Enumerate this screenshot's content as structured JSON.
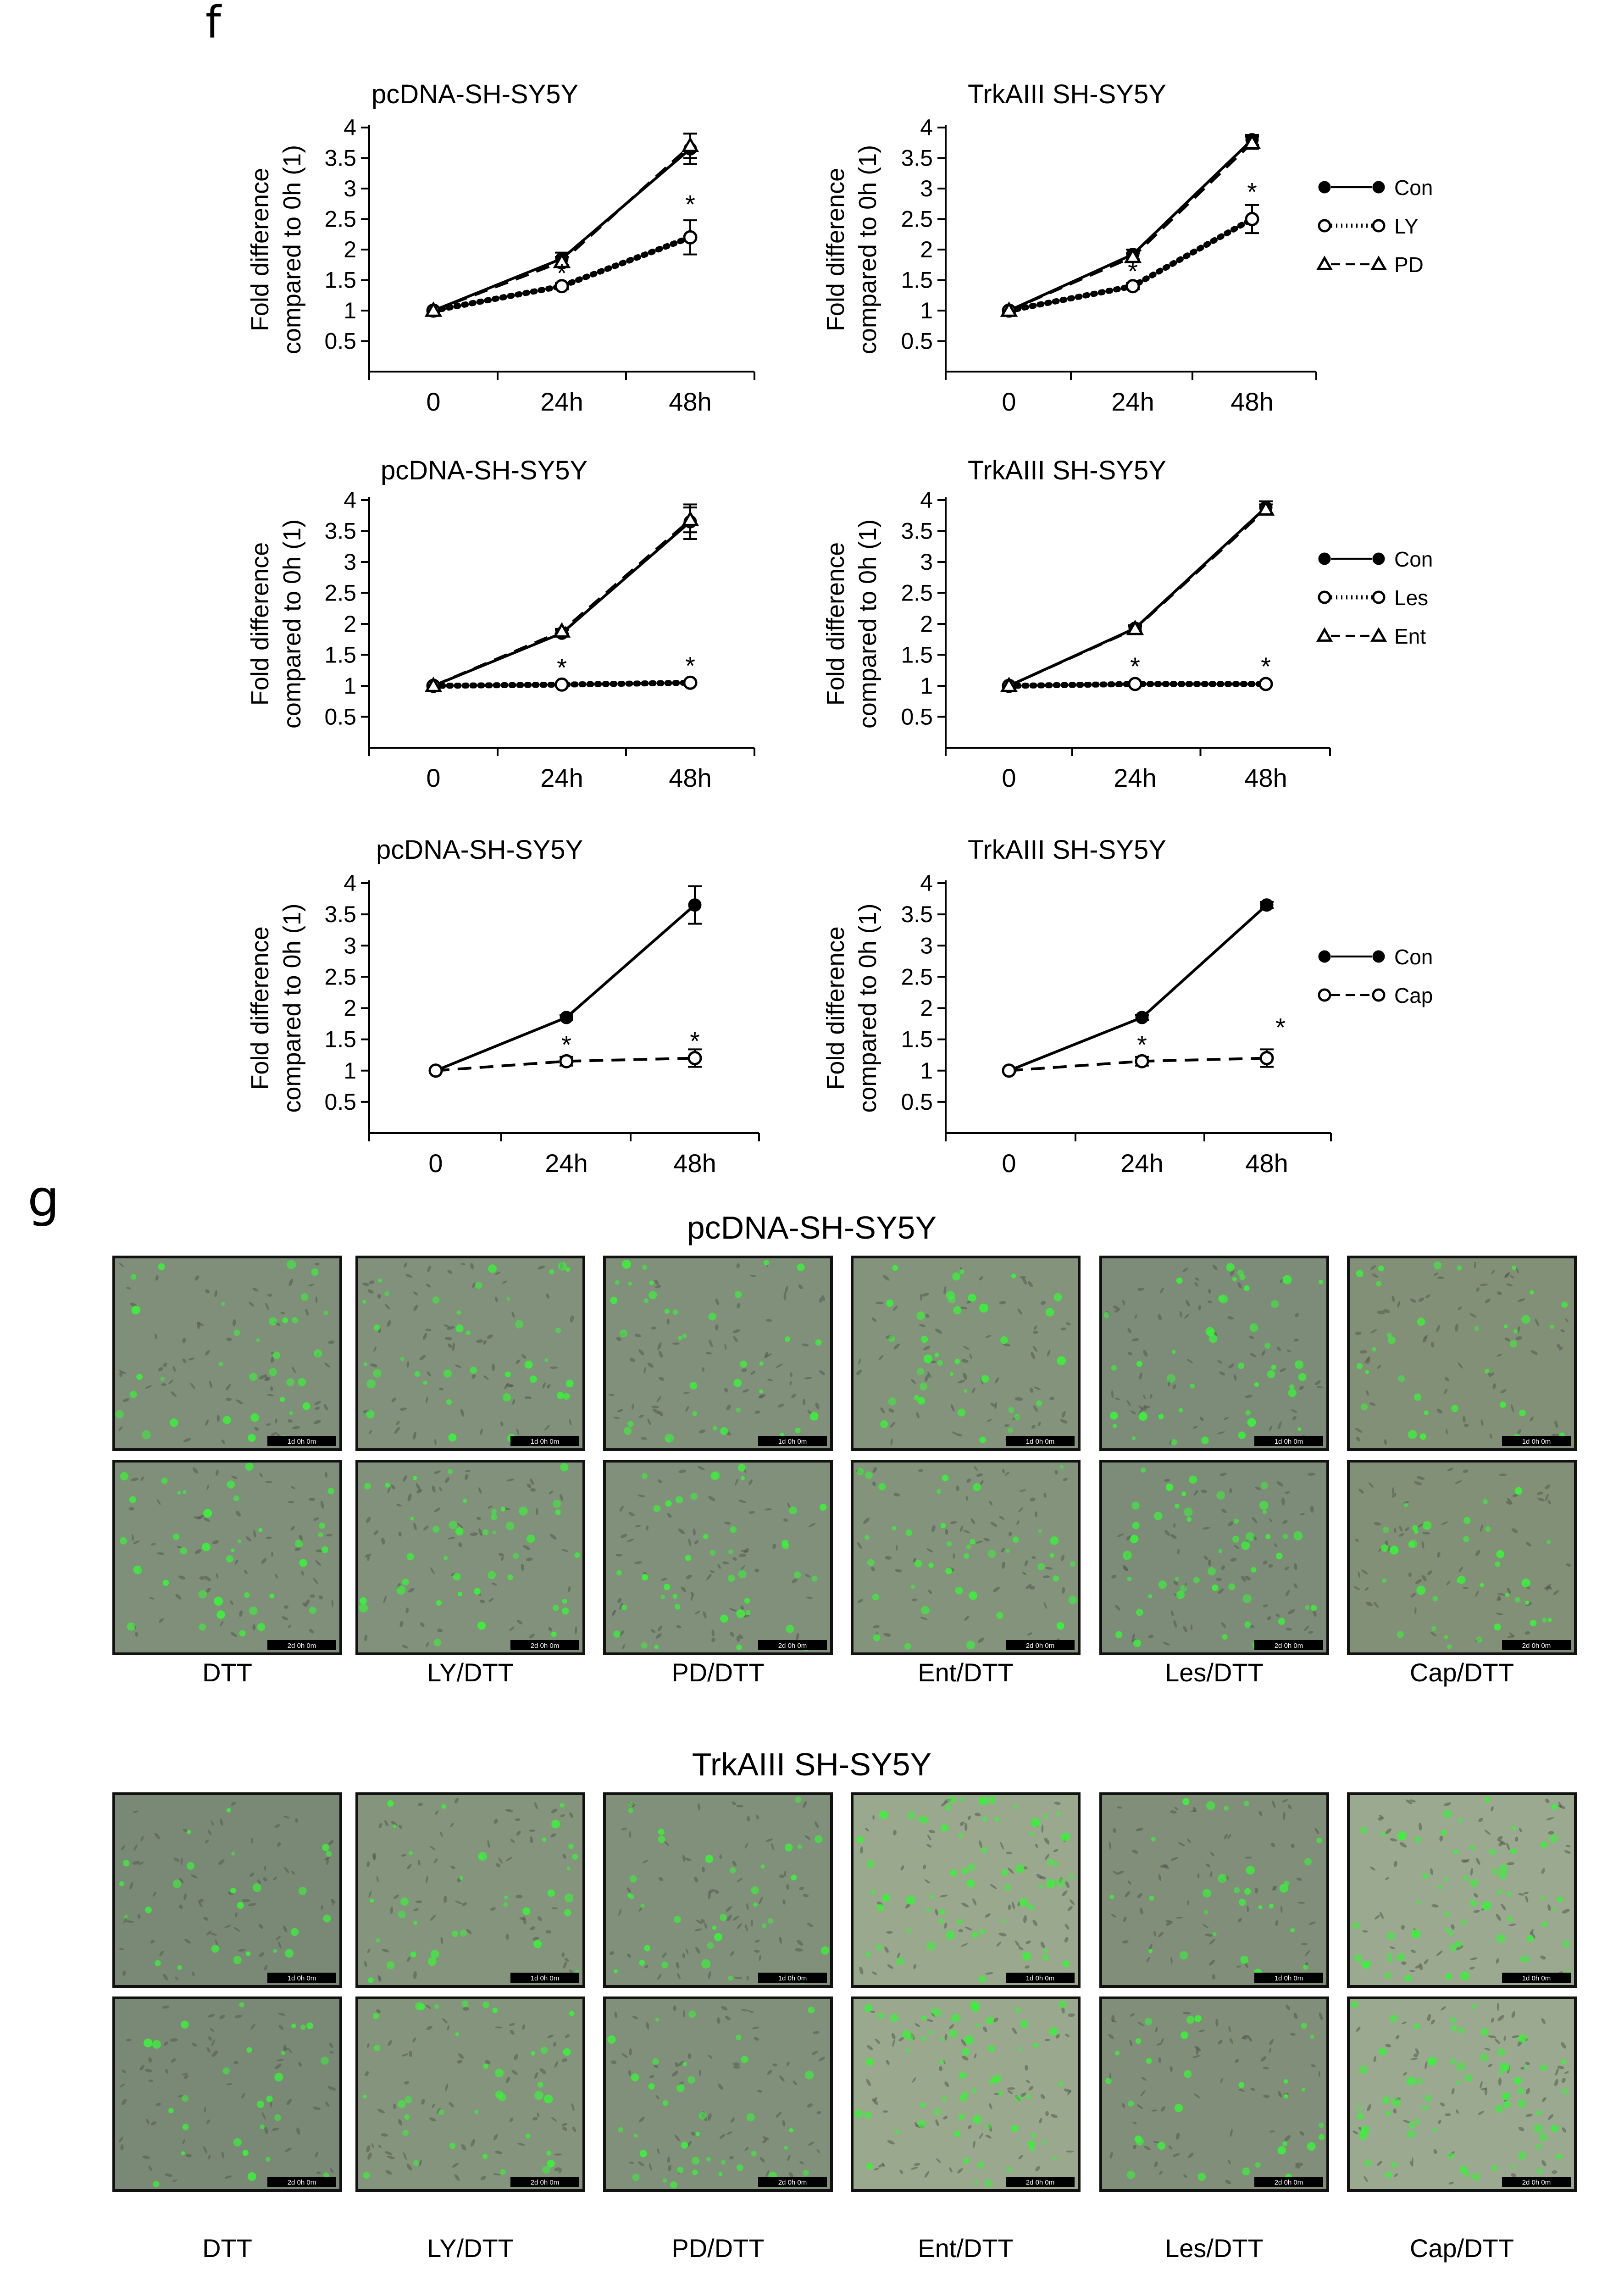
{
  "panels": {
    "f": "f",
    "g": "g"
  },
  "chart_data": [
    {
      "type": "line",
      "title": "pcDNA-SH-SY5Y",
      "ylabel": "Fold difference\ncompared to 0h (1)",
      "xlabel": "",
      "categories": [
        "0",
        "24h",
        "48h"
      ],
      "ylim": [
        0,
        4
      ],
      "yticks": [
        0.5,
        1,
        1.5,
        2,
        2.5,
        3,
        3.5,
        4
      ],
      "ytick_labels": [
        "0.5",
        "1",
        "1.5",
        "2",
        "2.5",
        "3",
        "3.5",
        "4"
      ],
      "series": [
        {
          "name": "Con",
          "style": "solid",
          "marker": "filled-circle",
          "values": [
            1,
            1.85,
            3.65
          ],
          "errors": [
            0,
            0.1,
            0.25
          ]
        },
        {
          "name": "LY",
          "style": "dotted",
          "marker": "open-circle",
          "values": [
            1,
            1.4,
            2.2
          ],
          "errors": [
            0,
            0.05,
            0.28
          ]
        },
        {
          "name": "PD",
          "style": "dashed",
          "marker": "open-triangle",
          "values": [
            1,
            1.8,
            3.7
          ],
          "errors": [
            0,
            0.08,
            0.2
          ]
        }
      ],
      "annotations": [
        {
          "x": "24h",
          "y": 1.62,
          "text": "*"
        },
        {
          "x": "48h",
          "y": 2.75,
          "text": "*"
        }
      ]
    },
    {
      "type": "line",
      "title": "TrkAIII SH-SY5Y",
      "ylabel": "Fold difference\ncompared to 0h (1)",
      "xlabel": "",
      "categories": [
        "0",
        "24h",
        "48h"
      ],
      "ylim": [
        0,
        4
      ],
      "yticks": [
        0.5,
        1,
        1.5,
        2,
        2.5,
        3,
        3.5,
        4
      ],
      "ytick_labels": [
        "0.5",
        "1",
        "1.5",
        "2",
        "2.5",
        "3",
        "3.5",
        "4"
      ],
      "series": [
        {
          "name": "Con",
          "style": "solid",
          "marker": "filled-circle",
          "values": [
            1,
            1.92,
            3.8
          ],
          "errors": [
            0,
            0.08,
            0.08
          ]
        },
        {
          "name": "LY",
          "style": "dotted",
          "marker": "open-circle",
          "values": [
            1,
            1.4,
            2.5
          ],
          "errors": [
            0,
            0.05,
            0.23
          ]
        },
        {
          "name": "PD",
          "style": "dashed",
          "marker": "open-triangle",
          "values": [
            1,
            1.88,
            3.75
          ],
          "errors": [
            0,
            0.06,
            0.1
          ]
        }
      ],
      "annotations": [
        {
          "x": "24h",
          "y": 1.65,
          "text": "*"
        },
        {
          "x": "48h",
          "y": 2.95,
          "text": "*"
        }
      ],
      "legend": [
        {
          "label": "Con",
          "marker": "filled-circle",
          "style": "solid"
        },
        {
          "label": "LY",
          "marker": "open-circle",
          "style": "dotted"
        },
        {
          "label": "PD",
          "marker": "open-triangle",
          "style": "dashed"
        }
      ]
    },
    {
      "type": "line",
      "title": "pcDNA-SH-SY5Y",
      "ylabel": "Fold difference\ncompared to 0h (1)",
      "xlabel": "",
      "categories": [
        "0",
        "24h",
        "48h"
      ],
      "ylim": [
        0,
        4
      ],
      "yticks": [
        0.5,
        1,
        1.5,
        2,
        2.5,
        3,
        3.5,
        4
      ],
      "ytick_labels": [
        "0.5",
        "1",
        "1.5",
        "2",
        "2.5",
        "3",
        "3.5",
        "4"
      ],
      "series": [
        {
          "name": "Con",
          "style": "solid",
          "marker": "filled-circle",
          "values": [
            1,
            1.85,
            3.65
          ],
          "errors": [
            0,
            0.05,
            0.28
          ]
        },
        {
          "name": "Les",
          "style": "dotted",
          "marker": "open-circle",
          "values": [
            1,
            1.02,
            1.05
          ],
          "errors": [
            0,
            0.02,
            0.02
          ]
        },
        {
          "name": "Ent",
          "style": "dashed",
          "marker": "open-triangle",
          "values": [
            1,
            1.88,
            3.68
          ],
          "errors": [
            0,
            0.04,
            0.2
          ]
        }
      ],
      "annotations": [
        {
          "x": "24h",
          "y": 1.3,
          "text": "*"
        },
        {
          "x": "48h",
          "y": 1.33,
          "text": "*"
        }
      ]
    },
    {
      "type": "line",
      "title": "TrkAIII SH-SY5Y",
      "ylabel": "Fold difference\ncompared to 0h (1)",
      "xlabel": "",
      "categories": [
        "0",
        "24h",
        "48h"
      ],
      "ylim": [
        0,
        4
      ],
      "yticks": [
        0.5,
        1,
        1.5,
        2,
        2.5,
        3,
        3.5,
        4
      ],
      "ytick_labels": [
        "0.5",
        "1",
        "1.5",
        "2",
        "2.5",
        "3",
        "3.5",
        "4"
      ],
      "series": [
        {
          "name": "Con",
          "style": "solid",
          "marker": "filled-circle",
          "values": [
            1,
            1.93,
            3.88
          ],
          "errors": [
            0,
            0.05,
            0.1
          ]
        },
        {
          "name": "Les",
          "style": "dotted",
          "marker": "open-circle",
          "values": [
            1,
            1.03,
            1.03
          ],
          "errors": [
            0,
            0.02,
            0.02
          ]
        },
        {
          "name": "Ent",
          "style": "dashed",
          "marker": "open-triangle",
          "values": [
            1,
            1.92,
            3.85
          ],
          "errors": [
            0,
            0.04,
            0.08
          ]
        }
      ],
      "annotations": [
        {
          "x": "24h",
          "y": 1.32,
          "text": "*"
        },
        {
          "x": "48h",
          "y": 1.32,
          "text": "*"
        }
      ],
      "legend": [
        {
          "label": "Con",
          "marker": "filled-circle",
          "style": "solid"
        },
        {
          "label": "Les",
          "marker": "open-circle",
          "style": "dotted"
        },
        {
          "label": "Ent",
          "marker": "open-triangle",
          "style": "dashed"
        }
      ]
    },
    {
      "type": "line",
      "title": "pcDNA-SH-SY5Y",
      "ylabel": "Fold difference\ncompared to 0h (1)",
      "xlabel": "",
      "categories": [
        "0",
        "24h",
        "48h"
      ],
      "ylim": [
        0,
        4
      ],
      "yticks": [
        0.5,
        1,
        1.5,
        2,
        2.5,
        3,
        3.5,
        4
      ],
      "ytick_labels": [
        "0.5",
        "1",
        "1.5",
        "2",
        "2.5",
        "3",
        "3.5",
        "4"
      ],
      "series": [
        {
          "name": "Con",
          "style": "solid",
          "marker": "filled-circle",
          "values": [
            1,
            1.85,
            3.65
          ],
          "errors": [
            0,
            0.04,
            0.3
          ]
        },
        {
          "name": "Cap",
          "style": "dashed",
          "marker": "open-circle",
          "values": [
            1,
            1.15,
            1.2
          ],
          "errors": [
            0,
            0.07,
            0.14
          ]
        }
      ],
      "annotations": [
        {
          "x": "24h",
          "y": 1.42,
          "text": "*"
        },
        {
          "x": "48h",
          "y": 1.48,
          "text": "*"
        }
      ]
    },
    {
      "type": "line",
      "title": "TrkAIII SH-SY5Y",
      "ylabel": "Fold difference\ncompared to 0h (1)",
      "xlabel": "",
      "categories": [
        "0",
        "24h",
        "48h"
      ],
      "ylim": [
        0,
        4
      ],
      "yticks": [
        0.5,
        1,
        1.5,
        2,
        2.5,
        3,
        3.5,
        4
      ],
      "ytick_labels": [
        "0.5",
        "1",
        "1.5",
        "2",
        "2.5",
        "3",
        "3.5",
        "4"
      ],
      "series": [
        {
          "name": "Con",
          "style": "solid",
          "marker": "filled-circle",
          "values": [
            1,
            1.85,
            3.65
          ],
          "errors": [
            0,
            0.04,
            0.05
          ]
        },
        {
          "name": "Cap",
          "style": "dashed",
          "marker": "open-circle",
          "values": [
            1,
            1.15,
            1.2
          ],
          "errors": [
            0,
            0.07,
            0.14
          ]
        }
      ],
      "annotations": [
        {
          "x": "24h",
          "y": 1.42,
          "text": "*"
        },
        {
          "x": "48h",
          "y": 1.7,
          "text": "*"
        }
      ],
      "legend": [
        {
          "label": "Con",
          "marker": "filled-circle",
          "style": "solid"
        },
        {
          "label": "Cap",
          "marker": "open-circle",
          "style": "dashed"
        }
      ]
    }
  ],
  "micrographs": {
    "groups": [
      {
        "title": "pcDNA-SH-SY5Y",
        "rows": [
          {
            "timestamp": "1d 0h 0m"
          },
          {
            "timestamp": "2d 0h 0m"
          }
        ]
      },
      {
        "title": "TrkAIII SH-SY5Y",
        "rows": [
          {
            "timestamp": "1d 0h 0m"
          },
          {
            "timestamp": "2d 0h 0m"
          }
        ]
      }
    ],
    "conditions": [
      "DTT",
      "LY/DTT",
      "PD/DTT",
      "Ent/DTT",
      "Les/DTT",
      "Cap/DTT"
    ],
    "tint": [
      [
        "#7f8f7a",
        "#81917b",
        "#80907b",
        "#84937c",
        "#7d8c78",
        "#839078"
      ],
      [
        "#7a8975",
        "#85947c",
        "#81907a",
        "#9aa88e",
        "#818f7a",
        "#9aa98f"
      ]
    ],
    "green_density": [
      [
        0.55,
        0.6,
        0.6,
        0.6,
        0.7,
        0.55
      ],
      [
        0.4,
        0.55,
        0.55,
        1.0,
        0.45,
        1.0
      ]
    ],
    "colors": {
      "green": "#3cf03c",
      "cell": "#525a4e"
    }
  }
}
